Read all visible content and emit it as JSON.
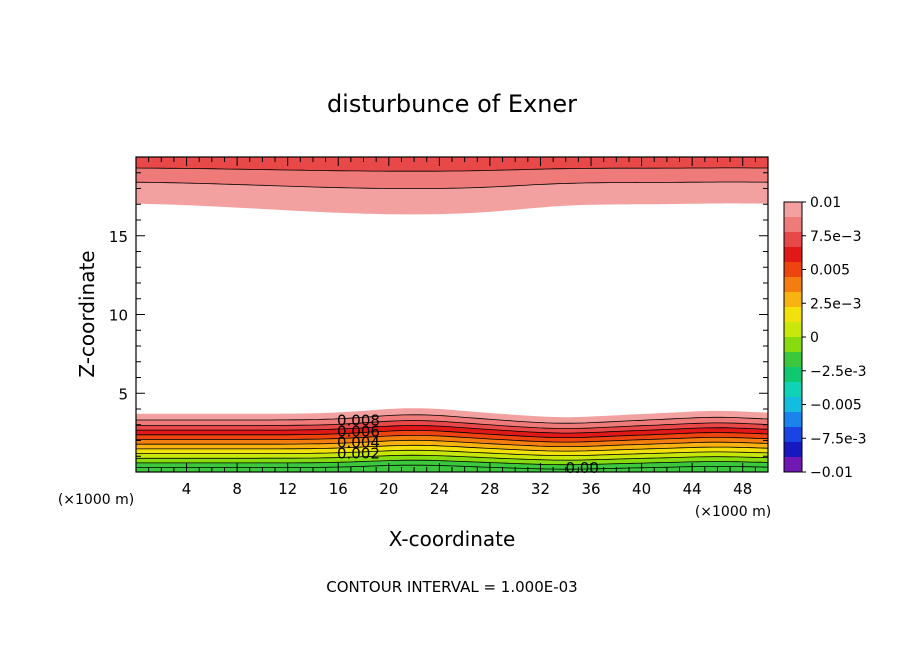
{
  "chart_data": {
    "type": "heatmap",
    "title": "disturbunce of Exner",
    "xlabel": "X-coordinate",
    "ylabel": "Z-coordinate",
    "x_unit_left": "(×1000 m)",
    "x_unit_right": "(×1000 m)",
    "xlim": [
      0,
      50
    ],
    "ylim": [
      0,
      20
    ],
    "x_ticks": [
      4,
      8,
      12,
      16,
      20,
      24,
      28,
      32,
      36,
      40,
      44,
      48
    ],
    "y_ticks": [
      5,
      10,
      15
    ],
    "grid": false,
    "footnote": "CONTOUR INTERVAL = 1.000E-03",
    "colorbar": {
      "placement": "right",
      "labels": [
        "0.01",
        "7.5e-3",
        "0.005",
        "2.5e-3",
        "0",
        "-2.5e-3",
        "-0.005",
        "-7.5e-3",
        "-0.01"
      ],
      "colors": [
        "#f3a0a0",
        "#ef7a7a",
        "#e84848",
        "#e01818",
        "#ee4410",
        "#f47d10",
        "#f8b310",
        "#f2e10c",
        "#c8e80c",
        "#86dc10",
        "#3cc83c",
        "#10c870",
        "#10d2b4",
        "#14bce0",
        "#1a84ec",
        "#1a44e4",
        "#1818c0",
        "#7018b4"
      ],
      "min": -0.01,
      "max": 0.01
    },
    "contour_labels": [
      "0.008",
      "0.006",
      "0.004",
      "0.002",
      "0.00"
    ],
    "contour_levels": [
      0.009,
      0.008,
      0.007,
      0.006,
      0.005,
      0.004,
      0.003,
      0.002,
      0.001,
      0.0
    ],
    "lower_field": {
      "levels_axis": "z where value reached",
      "bump_center_x": 22,
      "dip_center_x": 34,
      "bump_center_x2": 46
    }
  }
}
